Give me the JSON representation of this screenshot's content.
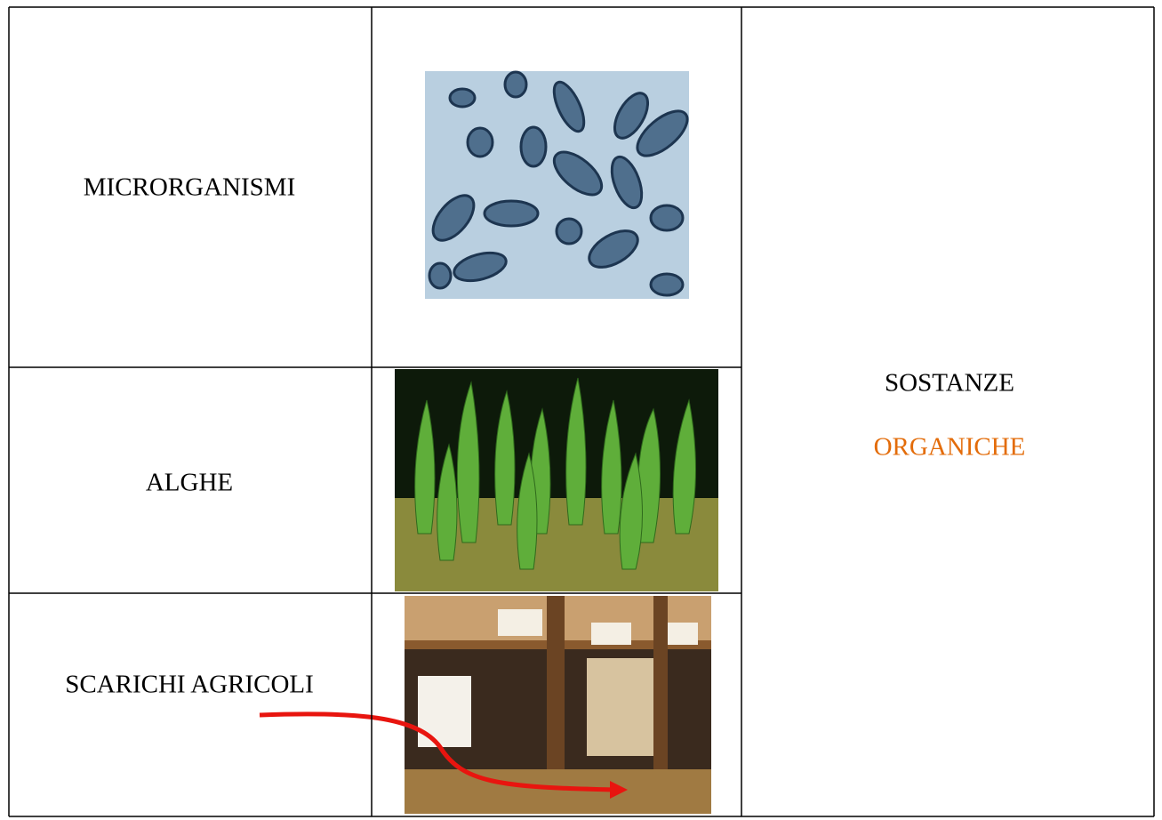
{
  "table": {
    "rows": [
      {
        "label": "MICRORGANISMI"
      },
      {
        "label": "ALGHE"
      },
      {
        "label": "SCARICHI AGRICOLI"
      }
    ],
    "merged_cell": {
      "lines": [
        "SOSTANZE",
        "ORGANICHE"
      ]
    }
  }
}
